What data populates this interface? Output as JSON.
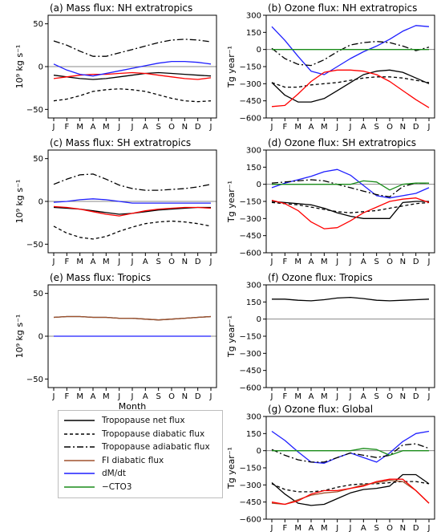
{
  "figure": {
    "x_tick_labels": [
      "J",
      "F",
      "M",
      "A",
      "M",
      "J",
      "J",
      "A",
      "S",
      "O",
      "N",
      "D",
      "J"
    ],
    "xlabel": "Month"
  },
  "styles": {
    "net": {
      "color": "#000000",
      "dash": ""
    },
    "diabatic": {
      "color": "#000000",
      "dash": "4,3"
    },
    "adiabatic": {
      "color": "#000000",
      "dash": "8,3,2,3"
    },
    "fi": {
      "color": "#a0522d",
      "dash": ""
    },
    "dmdt": {
      "color": "#1f1fff",
      "dash": ""
    },
    "cto3": {
      "color": "#1a8c1a",
      "dash": ""
    },
    "red": {
      "color": "#ff0000",
      "dash": ""
    }
  },
  "legend": {
    "items": [
      {
        "label": "Tropopause net flux",
        "style": "net"
      },
      {
        "label": "Tropopause diabatic flux",
        "style": "diabatic"
      },
      {
        "label": "Tropopause adiabatic flux",
        "style": "adiabatic"
      },
      {
        "label": "FI diabatic flux",
        "style": "fi"
      },
      {
        "label": "dM/dt",
        "style": "dmdt"
      },
      {
        "label": "−CTO3",
        "style": "cto3"
      }
    ]
  },
  "chart_data": [
    {
      "id": "a",
      "type": "line",
      "title": "(a) Mass flux: NH extratropics",
      "ylabel": "10⁹ kg s⁻¹",
      "ylim": [
        -60,
        60
      ],
      "yticks": [
        50,
        0,
        -50
      ],
      "show_xlabel": false,
      "series": [
        {
          "style": "adiabatic",
          "values": [
            30,
            25,
            18,
            12,
            12,
            16,
            20,
            24,
            28,
            31,
            32,
            31,
            29
          ]
        },
        {
          "style": "diabatic",
          "values": [
            -40,
            -38,
            -34,
            -29,
            -27,
            -26,
            -27,
            -29,
            -33,
            -37,
            -40,
            -41,
            -40
          ]
        },
        {
          "style": "net",
          "values": [
            -10,
            -12,
            -14,
            -15,
            -14,
            -12,
            -10,
            -8,
            -7,
            -8,
            -9,
            -10,
            -11
          ]
        },
        {
          "style": "red",
          "values": [
            -14,
            -12,
            -10,
            -9,
            -9,
            -8,
            -7,
            -8,
            -10,
            -12,
            -14,
            -15,
            -13
          ]
        },
        {
          "style": "dmdt",
          "values": [
            3,
            -4,
            -9,
            -11,
            -8,
            -5,
            -2,
            1,
            4,
            6,
            6,
            5,
            3
          ]
        }
      ]
    },
    {
      "id": "b",
      "type": "line",
      "title": "(b) Ozone flux: NH extratropics",
      "ylabel": "Tg year⁻¹",
      "ylim": [
        -600,
        300
      ],
      "yticks": [
        300,
        150,
        0,
        -150,
        -300,
        -450,
        -600
      ],
      "show_xlabel": false,
      "series": [
        {
          "style": "dmdt",
          "values": [
            200,
            80,
            -60,
            -190,
            -220,
            -150,
            -80,
            -20,
            30,
            90,
            160,
            210,
            200
          ]
        },
        {
          "style": "adiabatic",
          "values": [
            10,
            -80,
            -130,
            -140,
            -90,
            -20,
            40,
            60,
            70,
            60,
            30,
            -10,
            20
          ]
        },
        {
          "style": "cto3",
          "values": [
            0,
            0,
            0,
            0,
            0,
            0,
            0,
            0,
            0,
            0,
            0,
            0,
            0
          ]
        },
        {
          "style": "diabatic",
          "values": [
            -290,
            -330,
            -330,
            -310,
            -300,
            -290,
            -270,
            -250,
            -240,
            -240,
            -250,
            -270,
            -290
          ]
        },
        {
          "style": "net",
          "values": [
            -290,
            -400,
            -460,
            -460,
            -430,
            -360,
            -290,
            -220,
            -190,
            -180,
            -200,
            -250,
            -300
          ]
        },
        {
          "style": "red",
          "values": [
            -500,
            -490,
            -390,
            -280,
            -200,
            -180,
            -180,
            -190,
            -220,
            -280,
            -360,
            -440,
            -510
          ]
        }
      ]
    },
    {
      "id": "c",
      "type": "line",
      "title": "(c) Mass flux: SH extratropics",
      "ylabel": "10⁹ kg s⁻¹",
      "ylim": [
        -60,
        60
      ],
      "yticks": [
        50,
        0,
        -50
      ],
      "show_xlabel": false,
      "series": [
        {
          "style": "adiabatic",
          "values": [
            20,
            26,
            31,
            32,
            26,
            19,
            15,
            13,
            13,
            14,
            15,
            17,
            20
          ]
        },
        {
          "style": "dmdt",
          "values": [
            -1,
            0,
            2,
            3,
            2,
            0,
            -2,
            -2,
            -2,
            -2,
            -2,
            -2,
            -2
          ]
        },
        {
          "style": "net",
          "values": [
            -7,
            -8,
            -9,
            -11,
            -13,
            -15,
            -14,
            -12,
            -10,
            -9,
            -8,
            -7,
            -7
          ]
        },
        {
          "style": "red",
          "values": [
            -6,
            -7,
            -9,
            -12,
            -15,
            -17,
            -14,
            -11,
            -9,
            -8,
            -7,
            -7,
            -8
          ]
        },
        {
          "style": "diabatic",
          "values": [
            -29,
            -37,
            -42,
            -44,
            -41,
            -35,
            -30,
            -26,
            -24,
            -23,
            -24,
            -26,
            -29
          ]
        }
      ]
    },
    {
      "id": "d",
      "type": "line",
      "title": "(d) Ozone flux: SH extratropics",
      "ylabel": "Tg year⁻¹",
      "ylim": [
        -600,
        300
      ],
      "yticks": [
        300,
        150,
        0,
        -150,
        -300,
        -450,
        -600
      ],
      "show_xlabel": false,
      "series": [
        {
          "style": "dmdt",
          "values": [
            -30,
            10,
            40,
            70,
            110,
            130,
            80,
            -10,
            -100,
            -120,
            -100,
            -80,
            -30
          ]
        },
        {
          "style": "adiabatic",
          "values": [
            10,
            20,
            30,
            40,
            30,
            0,
            -30,
            -60,
            -90,
            -110,
            -20,
            10,
            10
          ]
        },
        {
          "style": "cto3",
          "values": [
            0,
            0,
            0,
            0,
            0,
            0,
            0,
            30,
            20,
            -50,
            0,
            10,
            10
          ]
        },
        {
          "style": "diabatic",
          "values": [
            -160,
            -170,
            -180,
            -200,
            -220,
            -240,
            -250,
            -240,
            -230,
            -210,
            -190,
            -170,
            -160
          ]
        },
        {
          "style": "net",
          "values": [
            -150,
            -160,
            -170,
            -180,
            -210,
            -250,
            -280,
            -300,
            -300,
            -300,
            -160,
            -150,
            -150
          ]
        },
        {
          "style": "red",
          "values": [
            -140,
            -170,
            -230,
            -330,
            -390,
            -380,
            -320,
            -250,
            -200,
            -150,
            -130,
            -120,
            -160
          ]
        }
      ]
    },
    {
      "id": "e",
      "type": "line",
      "title": "(e) Mass flux: Tropics",
      "ylabel": "10⁹ kg s⁻¹",
      "ylim": [
        -60,
        60
      ],
      "yticks": [
        50,
        0,
        -50
      ],
      "show_xlabel": true,
      "series": [
        {
          "style": "net",
          "values": [
            22,
            23,
            23,
            22,
            22,
            21,
            21,
            20,
            19,
            20,
            21,
            22,
            23
          ]
        },
        {
          "style": "fi",
          "values": [
            22,
            23,
            23,
            22,
            22,
            21,
            21,
            20,
            19,
            20,
            21,
            22,
            23
          ]
        },
        {
          "style": "dmdt",
          "values": [
            0,
            0,
            0,
            0,
            0,
            0,
            0,
            0,
            0,
            0,
            0,
            0,
            0
          ]
        }
      ]
    },
    {
      "id": "f",
      "type": "line",
      "title": "(f) Ozone flux: Tropics",
      "ylabel": "Tg year⁻¹",
      "ylim": [
        -600,
        300
      ],
      "yticks": [
        300,
        150,
        0,
        -150,
        -300,
        -450,
        -600
      ],
      "show_xlabel": false,
      "series": [
        {
          "style": "net",
          "values": [
            175,
            175,
            165,
            160,
            170,
            185,
            190,
            180,
            165,
            160,
            165,
            170,
            175
          ]
        }
      ]
    },
    {
      "id": "g",
      "type": "line",
      "title": "(g) Ozone flux: Global",
      "ylabel": "Tg year⁻¹",
      "ylim": [
        -600,
        300
      ],
      "yticks": [
        300,
        150,
        0,
        -150,
        -300,
        -450,
        -600
      ],
      "show_xlabel": true,
      "series": [
        {
          "style": "dmdt",
          "values": [
            170,
            90,
            -10,
            -100,
            -110,
            -60,
            -20,
            -60,
            -100,
            -20,
            80,
            150,
            170
          ]
        },
        {
          "style": "adiabatic",
          "values": [
            10,
            -40,
            -80,
            -100,
            -100,
            -60,
            -20,
            -40,
            -60,
            -40,
            50,
            60,
            20
          ]
        },
        {
          "style": "cto3",
          "values": [
            0,
            0,
            0,
            0,
            0,
            0,
            0,
            20,
            10,
            -40,
            0,
            0,
            0
          ]
        },
        {
          "style": "diabatic",
          "values": [
            -290,
            -340,
            -360,
            -360,
            -350,
            -320,
            -300,
            -290,
            -290,
            -280,
            -270,
            -270,
            -290
          ]
        },
        {
          "style": "net",
          "values": [
            -280,
            -380,
            -460,
            -480,
            -470,
            -420,
            -370,
            -340,
            -330,
            -310,
            -210,
            -210,
            -290
          ]
        },
        {
          "style": "fi",
          "values": [
            -460,
            -470,
            -430,
            -390,
            -370,
            -360,
            -330,
            -300,
            -280,
            -260,
            -270,
            -350,
            -460
          ]
        },
        {
          "style": "red",
          "values": [
            -450,
            -470,
            -440,
            -380,
            -350,
            -350,
            -330,
            -310,
            -270,
            -250,
            -250,
            -350,
            -460
          ]
        }
      ]
    }
  ]
}
